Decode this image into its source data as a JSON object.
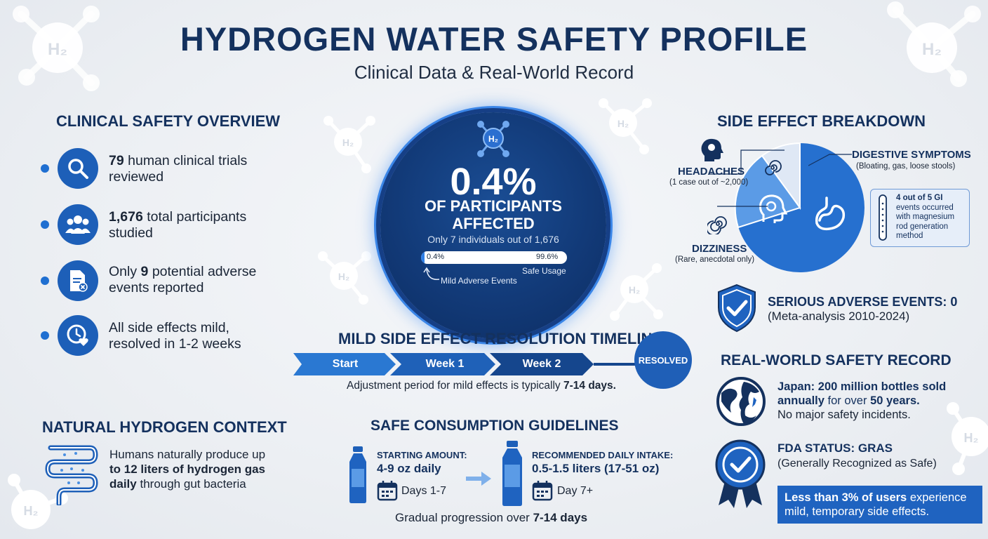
{
  "header": {
    "title": "HYDROGEN WATER SAFETY PROFILE",
    "subtitle": "Clinical Data & Real-World Record"
  },
  "molecule_symbol": "H₂",
  "clinical": {
    "heading": "CLINICAL SAFETY OVERVIEW",
    "items": [
      {
        "icon": "magnifier-icon",
        "bold": "79",
        "text": "human clinical trials",
        "line2": "reviewed"
      },
      {
        "icon": "people-icon",
        "bold": "1,676",
        "text": "total participants",
        "line2": "studied"
      },
      {
        "icon": "document-x-icon",
        "pre": "Only",
        "bold": "9",
        "text": "potential adverse",
        "line2": "events reported"
      },
      {
        "icon": "clock-heart-icon",
        "line1": "All side effects mild,",
        "line2": "resolved in 1-2 weeks"
      }
    ]
  },
  "center": {
    "percent": "0.4%",
    "label_line1": "OF PARTICIPANTS",
    "label_line2": "AFFECTED",
    "sub": "Only 7 individuals out of 1,676",
    "bar_left": "0.4%",
    "bar_right": "99.6%",
    "bar_fraction": 0.004,
    "safe_label": "Safe Usage",
    "mild_label": "Mild Adverse Events"
  },
  "timeline": {
    "heading": "MILD SIDE EFFECT RESOLUTION TIMELINE",
    "steps": [
      "Start",
      "Week 1",
      "Week 2"
    ],
    "end": "RESOLVED",
    "note_pre": "Adjustment period for mild effects is typically",
    "note_bold": "7-14 days."
  },
  "natural": {
    "heading": "NATURAL HYDROGEN CONTEXT",
    "line1": "Humans naturally produce up",
    "bold_line2": "to 12 liters of hydrogen gas",
    "bold3": "daily",
    "line3": "through gut bacteria"
  },
  "guidelines": {
    "heading": "SAFE CONSUMPTION GUIDELINES",
    "start_label": "STARTING AMOUNT:",
    "start_value": "4-9 oz daily",
    "start_days": "Days 1-7",
    "rec_label": "RECOMMENDED DAILY INTAKE:",
    "rec_value": "0.5-1.5 liters (17-51 oz)",
    "rec_days": "Day 7+",
    "progression_pre": "Gradual progression over",
    "progression_bold": "7-14 days"
  },
  "side_effects": {
    "heading": "SIDE EFFECT BREAKDOWN",
    "headaches": "HEADACHES",
    "headaches_sub": "(1 case out of ~2,000)",
    "digestive": "DIGESTIVE SYMPTOMS",
    "digestive_sub": "(Bloating, gas, loose stools)",
    "dizziness": "DIZZINESS",
    "dizziness_sub": "(Rare, anecdotal only)",
    "note": [
      "4 out of 5 GI",
      "events occurred",
      "with magnesium",
      "rod generation",
      "method"
    ]
  },
  "serious": {
    "heading": "SERIOUS ADVERSE EVENTS: 0",
    "sub": "(Meta-analysis 2010-2024)"
  },
  "real_world": {
    "heading": "REAL-WORLD SAFETY RECORD",
    "jp_bold1": "Japan: 200 million bottles sold",
    "jp_bold2": "annually",
    "jp_mid": "for over",
    "jp_bold3": "50 years.",
    "jp_line3": "No major safety incidents.",
    "fda_heading": "FDA STATUS: GRAS",
    "fda_sub": "(Generally Recognized as Safe)",
    "less_bold": "Less than 3% of users",
    "less_rest1": "experience",
    "less_rest2": "mild, temporary side effects."
  },
  "colors": {
    "navy": "#14315e",
    "accent": "#1f63c0",
    "light_accent": "#5b9be6"
  }
}
